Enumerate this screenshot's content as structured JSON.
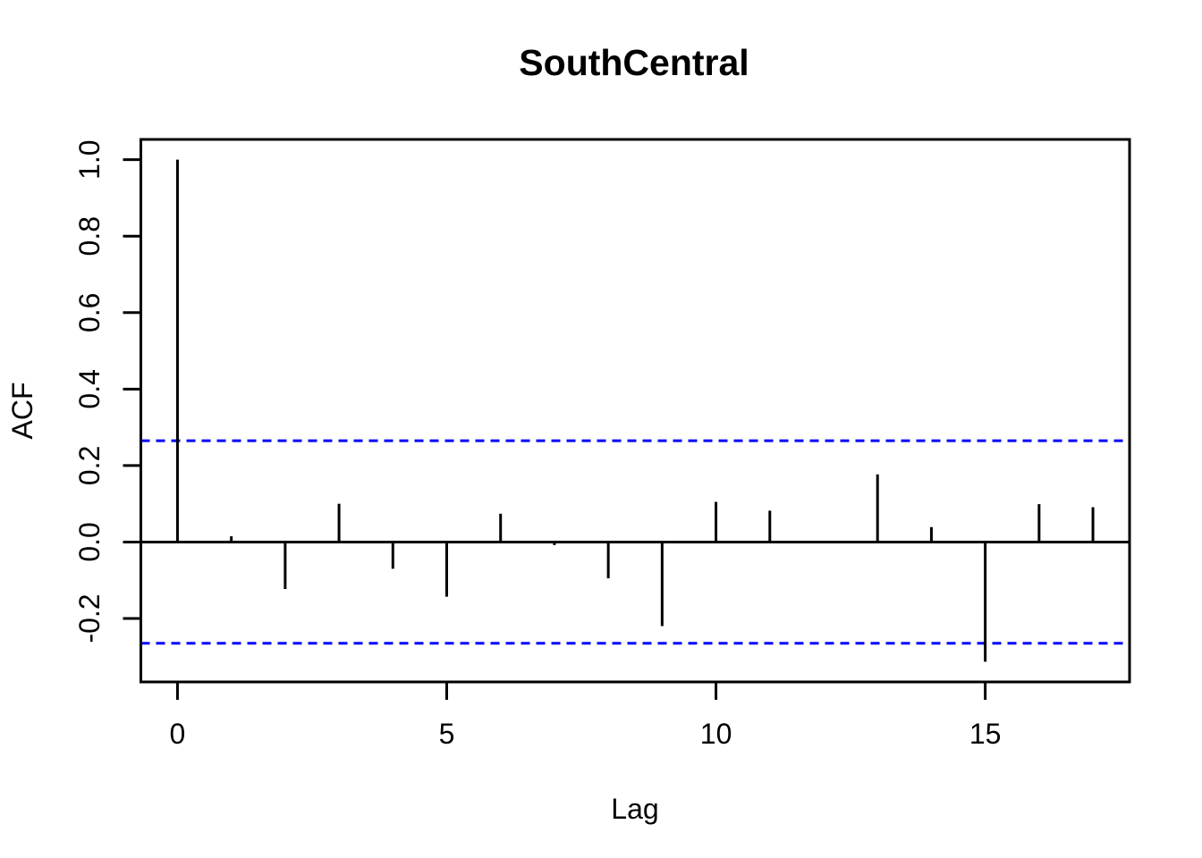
{
  "page": {
    "background_color": "#ffffff"
  },
  "chart_data": {
    "type": "bar",
    "subtype": "acf-stem-plot",
    "title": "SouthCentral",
    "xlabel": "Lag",
    "ylabel": "ACF",
    "x": [
      0,
      1,
      2,
      3,
      4,
      5,
      6,
      7,
      8,
      9,
      10,
      11,
      12,
      13,
      14,
      15,
      16,
      17
    ],
    "values": [
      1.0,
      0.015,
      -0.123,
      0.1,
      -0.07,
      -0.143,
      0.074,
      -0.008,
      -0.095,
      -0.22,
      0.105,
      0.082,
      0.002,
      0.177,
      0.039,
      -0.313,
      0.099,
      0.091
    ],
    "confidence_bounds": {
      "upper": 0.265,
      "lower": -0.265,
      "line_style": "dashed",
      "color": "#0000FF"
    },
    "xlim": [
      -0.68,
      17.68
    ],
    "ylim": [
      -0.366,
      1.053
    ],
    "xticks": {
      "values": [
        0,
        5,
        10,
        15
      ],
      "labels": [
        "0",
        "5",
        "10",
        "15"
      ]
    },
    "yticks": {
      "values": [
        -0.2,
        0.0,
        0.2,
        0.4,
        0.6,
        0.8,
        1.0
      ],
      "labels": [
        "-0.2",
        "0.0",
        "0.2",
        "0.4",
        "0.6",
        "0.8",
        "1.0"
      ]
    },
    "grid": false,
    "legend": null,
    "bar_color": "#000000",
    "axis_color": "#000000",
    "zero_line": true
  }
}
